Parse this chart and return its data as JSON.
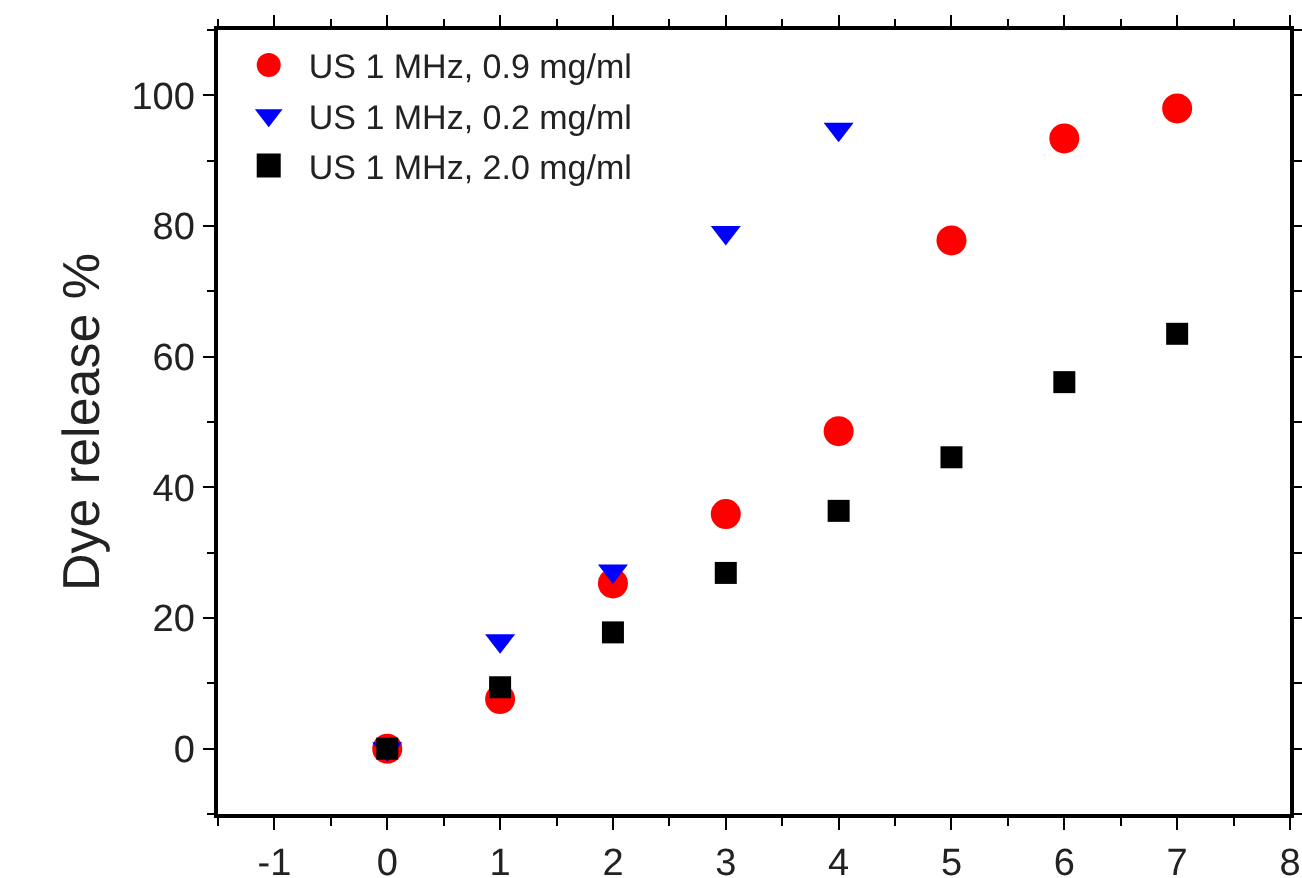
{
  "chart_data": {
    "type": "scatter",
    "ylabel": "Dye release %",
    "x": [
      0,
      1,
      2,
      3,
      4,
      5,
      6,
      7
    ],
    "series": [
      {
        "name": "US 1 MHz, 0.9 mg/ml",
        "color": "#ff0000",
        "marker": "circle",
        "values": [
          0,
          7.6,
          25.3,
          35.9,
          48.6,
          77.8,
          93.4,
          98.0
        ]
      },
      {
        "name": "US 1 MHz, 0.2 mg/ml",
        "color": "#0000ff",
        "marker": "triangle",
        "values": [
          0,
          16.5,
          27.2,
          79,
          94.8,
          null,
          null,
          null
        ]
      },
      {
        "name": "US 1 MHz, 2.0 mg/ml",
        "color": "#000000",
        "marker": "square",
        "values": [
          0,
          9.4,
          17.8,
          26.9,
          36.4,
          44.6,
          56.1,
          63.5
        ]
      }
    ],
    "xlim": [
      -1.5,
      8
    ],
    "xticks": [
      -1,
      0,
      1,
      2,
      3,
      4,
      5,
      6,
      7,
      8
    ],
    "ylim": [
      -10,
      110
    ],
    "yticks": [
      0,
      20,
      40,
      60,
      80,
      100
    ],
    "grid": false,
    "legend": "top left"
  }
}
